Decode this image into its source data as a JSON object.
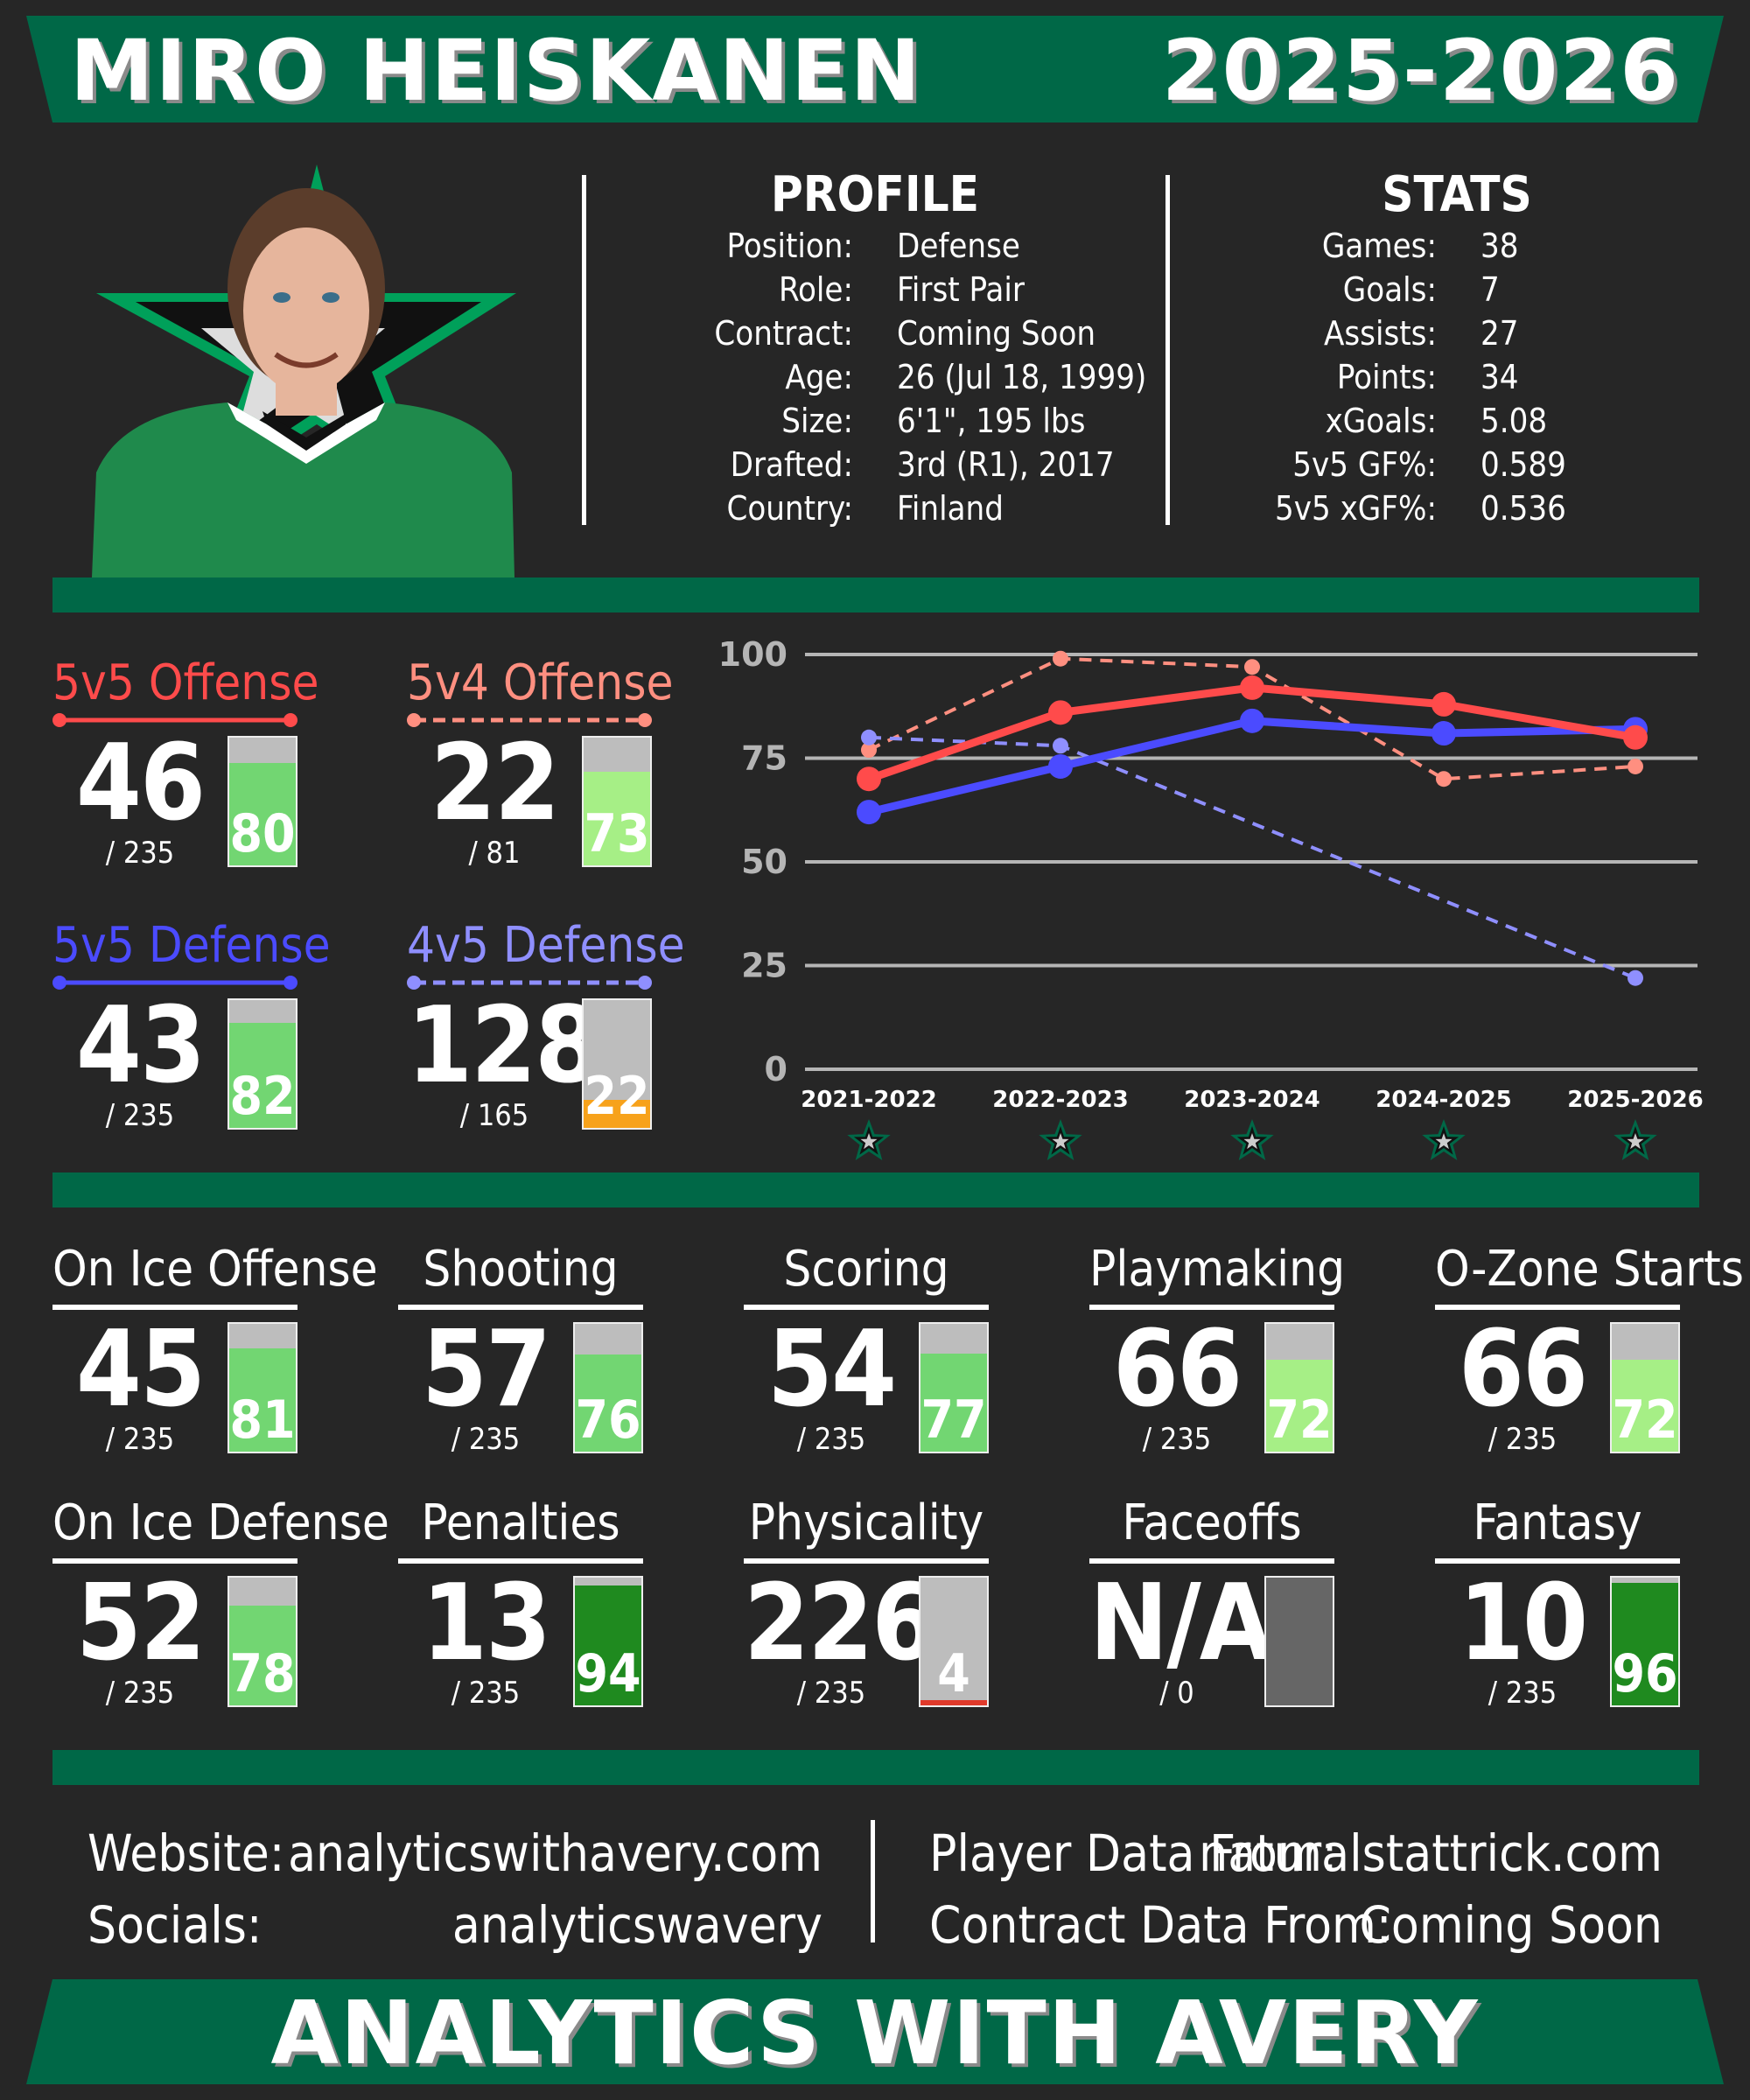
{
  "header": {
    "player_name": "MIRO HEISKANEN",
    "season": "2025-2026"
  },
  "profile": {
    "title": "PROFILE",
    "rows": [
      {
        "label": "Position:",
        "value": "Defense"
      },
      {
        "label": "Role:",
        "value": "First Pair"
      },
      {
        "label": "Contract:",
        "value": "Coming Soon"
      },
      {
        "label": "Age:",
        "value": "26 (Jul 18, 1999)"
      },
      {
        "label": "Size:",
        "value": "6'1\", 195 lbs"
      },
      {
        "label": "Drafted:",
        "value": "3rd (R1), 2017"
      },
      {
        "label": "Country:",
        "value": "Finland"
      }
    ]
  },
  "stats": {
    "title": "STATS",
    "rows": [
      {
        "label": "Games:",
        "value": "38"
      },
      {
        "label": "Goals:",
        "value": "7"
      },
      {
        "label": "Assists:",
        "value": "27"
      },
      {
        "label": "Points:",
        "value": "34"
      },
      {
        "label": "xGoals:",
        "value": "5.08"
      },
      {
        "label": "5v5 GF%:",
        "value": "0.589"
      },
      {
        "label": "5v5 xGF%:",
        "value": "0.536"
      }
    ]
  },
  "colors": {
    "brand_green": "#006847",
    "offense_red": "#ff4b4b",
    "pp_salmon": "#ff8f80",
    "defense_blue": "#4b4bff",
    "pk_lavender": "#8f8fff",
    "bar_bg": "#bdbdbd"
  },
  "special_teams": [
    {
      "title": "5v5 Offense",
      "rank": "46",
      "total": "/ 235",
      "pct": 80,
      "color": "#ff4b4b",
      "dashed": false
    },
    {
      "title": "5v4 Offense",
      "rank": "22",
      "total": "/ 81",
      "pct": 73,
      "color": "#ff8f80",
      "dashed": true
    },
    {
      "title": "5v5 Defense",
      "rank": "43",
      "total": "/ 235",
      "pct": 82,
      "color": "#4b4bff",
      "dashed": false
    },
    {
      "title": "4v5 Defense",
      "rank": "128",
      "total": "/ 165",
      "pct": 22,
      "color": "#8f8fff",
      "dashed": true
    }
  ],
  "chart_data": {
    "type": "line",
    "categories": [
      "2021-2022",
      "2022-2023",
      "2023-2024",
      "2024-2025",
      "2025-2026"
    ],
    "ylim": [
      0,
      100
    ],
    "yticks": [
      "0",
      "25",
      "50",
      "75",
      "100"
    ],
    "grid": true,
    "series": [
      {
        "name": "5v5 Offense",
        "color": "#ff4b4b",
        "dashed": false,
        "values": [
          70,
          86,
          92,
          88,
          80
        ]
      },
      {
        "name": "5v5 Defense",
        "color": "#4b4bff",
        "dashed": false,
        "values": [
          62,
          73,
          84,
          81,
          82
        ]
      },
      {
        "name": "5v4 Offense",
        "color": "#ff8f80",
        "dashed": true,
        "values": [
          77,
          99,
          97,
          70,
          73
        ]
      },
      {
        "name": "4v5 Defense",
        "color": "#8f8fff",
        "dashed": true,
        "values": [
          80,
          78,
          null,
          null,
          22
        ]
      }
    ]
  },
  "categories": [
    {
      "title": "On Ice Offense",
      "rank": "45",
      "total": "/ 235",
      "pct": 81
    },
    {
      "title": "Shooting",
      "rank": "57",
      "total": "/ 235",
      "pct": 76
    },
    {
      "title": "Scoring",
      "rank": "54",
      "total": "/ 235",
      "pct": 77
    },
    {
      "title": "Playmaking",
      "rank": "66",
      "total": "/ 235",
      "pct": 72
    },
    {
      "title": "O-Zone Starts",
      "rank": "66",
      "total": "/ 235",
      "pct": 72
    },
    {
      "title": "On Ice Defense",
      "rank": "52",
      "total": "/ 235",
      "pct": 78
    },
    {
      "title": "Penalties",
      "rank": "13",
      "total": "/ 235",
      "pct": 94
    },
    {
      "title": "Physicality",
      "rank": "226",
      "total": "/ 235",
      "pct": 4
    },
    {
      "title": "Faceoffs",
      "rank": "N/A",
      "total": "/ 0",
      "pct": null
    },
    {
      "title": "Fantasy",
      "rank": "10",
      "total": "/ 235",
      "pct": 96
    }
  ],
  "footer": {
    "website_label": "Website:",
    "website_value": "analyticswithavery.com",
    "socials_label": "Socials:",
    "socials_value": "analyticswavery",
    "player_label": "Player Data From:",
    "player_value": "naturalstattrick.com",
    "contract_label": "Contract Data From:",
    "contract_value": "Coming Soon",
    "brand": "ANALYTICS WITH AVERY"
  }
}
